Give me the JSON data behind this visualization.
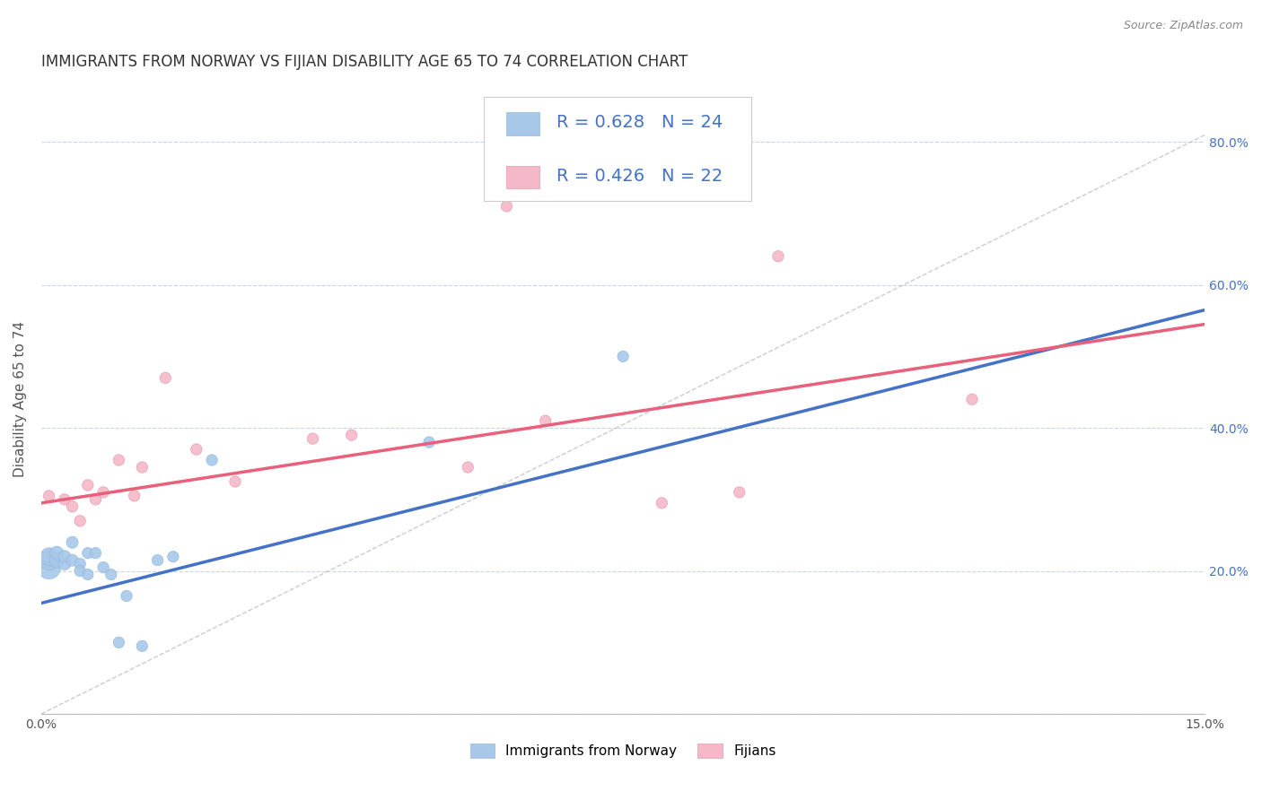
{
  "title": "IMMIGRANTS FROM NORWAY VS FIJIAN DISABILITY AGE 65 TO 74 CORRELATION CHART",
  "source": "Source: ZipAtlas.com",
  "ylabel": "Disability Age 65 to 74",
  "x_min": 0.0,
  "x_max": 0.15,
  "y_min": 0.0,
  "y_max": 0.88,
  "x_ticks": [
    0.0,
    0.03,
    0.06,
    0.09,
    0.12,
    0.15
  ],
  "x_tick_labels": [
    "0.0%",
    "",
    "",
    "",
    "",
    "15.0%"
  ],
  "y_ticks": [
    0.0,
    0.2,
    0.4,
    0.6,
    0.8
  ],
  "y_tick_labels": [
    "",
    "20.0%",
    "40.0%",
    "60.0%",
    "80.0%"
  ],
  "norway_R": 0.628,
  "norway_N": 24,
  "fijian_R": 0.426,
  "fijian_N": 22,
  "norway_color": "#a8c8ea",
  "fijian_color": "#f4b8c8",
  "norway_line_color": "#4472c4",
  "fijian_line_color": "#e8607a",
  "legend_color": "#4472c4",
  "norway_x": [
    0.001,
    0.001,
    0.001,
    0.002,
    0.002,
    0.003,
    0.003,
    0.004,
    0.004,
    0.005,
    0.005,
    0.006,
    0.006,
    0.007,
    0.008,
    0.009,
    0.01,
    0.011,
    0.013,
    0.015,
    0.017,
    0.022,
    0.05,
    0.075
  ],
  "norway_y": [
    0.205,
    0.215,
    0.22,
    0.215,
    0.225,
    0.21,
    0.22,
    0.215,
    0.24,
    0.21,
    0.2,
    0.195,
    0.225,
    0.225,
    0.205,
    0.195,
    0.1,
    0.165,
    0.095,
    0.215,
    0.22,
    0.355,
    0.38,
    0.5
  ],
  "norway_dot_sizes": [
    350,
    250,
    200,
    150,
    120,
    100,
    100,
    90,
    90,
    80,
    80,
    80,
    80,
    80,
    80,
    80,
    80,
    80,
    80,
    80,
    80,
    80,
    80,
    80
  ],
  "fijian_x": [
    0.001,
    0.003,
    0.004,
    0.005,
    0.006,
    0.007,
    0.008,
    0.01,
    0.012,
    0.013,
    0.016,
    0.02,
    0.025,
    0.035,
    0.04,
    0.055,
    0.06,
    0.065,
    0.08,
    0.09,
    0.095,
    0.12
  ],
  "fijian_y": [
    0.305,
    0.3,
    0.29,
    0.27,
    0.32,
    0.3,
    0.31,
    0.355,
    0.305,
    0.345,
    0.47,
    0.37,
    0.325,
    0.385,
    0.39,
    0.345,
    0.71,
    0.41,
    0.295,
    0.31,
    0.64,
    0.44
  ],
  "fijian_dot_sizes": [
    80,
    80,
    80,
    80,
    80,
    80,
    80,
    80,
    80,
    80,
    80,
    80,
    80,
    80,
    80,
    80,
    80,
    80,
    80,
    80,
    80,
    80
  ],
  "norway_line_x0": 0.0,
  "norway_line_y0": 0.155,
  "norway_line_x1": 0.15,
  "norway_line_y1": 0.565,
  "fijian_line_x0": 0.0,
  "fijian_line_y0": 0.295,
  "fijian_line_x1": 0.15,
  "fijian_line_y1": 0.545,
  "background_color": "#ffffff",
  "grid_color": "#c8d4e8",
  "title_fontsize": 12,
  "axis_label_fontsize": 11,
  "tick_fontsize": 10,
  "legend_fontsize": 14
}
